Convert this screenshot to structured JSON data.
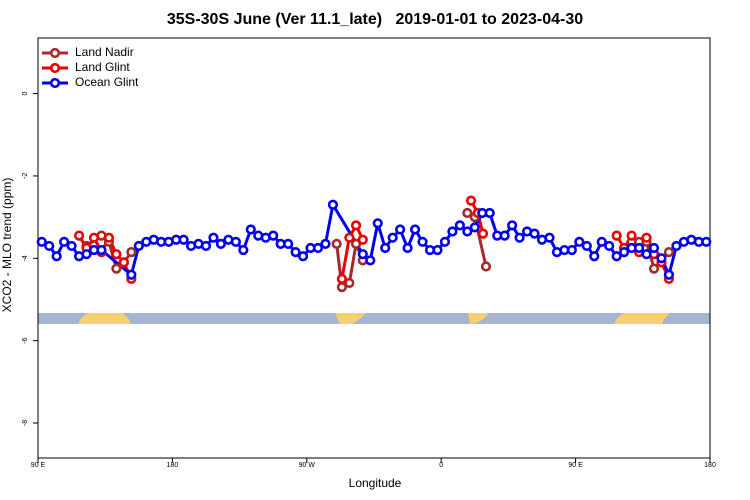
{
  "chart_data": {
    "type": "line",
    "title": "35S-30S June (Ver 11.1_late)   2019-01-01 to 2023-04-30",
    "xlabel": "Longitude",
    "ylabel": "XCO2 - MLO trend (ppm)",
    "xlim": [
      90,
      540
    ],
    "ylim": [
      -8.85,
      1.35
    ],
    "xticks": [
      {
        "value": 90,
        "label": "90 E"
      },
      180,
      {
        "value": 270,
        "label": "90 W"
      },
      {
        "value": 360,
        "label": "0"
      },
      {
        "value": 450,
        "label": "90 E"
      },
      {
        "value": 540,
        "label": "180"
      }
    ],
    "yticks": [
      0,
      -2,
      -4,
      -6,
      -8
    ],
    "legend": "upper left",
    "series": [
      {
        "name": "Land Nadir",
        "color": "#a52a2a",
        "x": [
          122.5,
          132.5,
          137.5,
          142.5,
          147.5,
          152.5,
          null,
          290,
          293.5,
          298.5,
          303,
          307.5,
          null,
          377.5,
          382.5,
          390,
          null,
          482.5,
          487.5,
          492.5,
          497.5,
          502.5,
          512.5
        ],
        "values": [
          -3.7,
          -3.45,
          -3.6,
          -4.25,
          -4.1,
          -3.85,
          null,
          -3.65,
          -4.7,
          -4.6,
          -3.65,
          -4.05,
          null,
          -2.9,
          -3.0,
          -4.2,
          null,
          -3.75,
          -3.6,
          -3.6,
          -3.6,
          -4.25,
          -3.85
        ]
      },
      {
        "name": "Land Glint",
        "color": "#ee0000",
        "x": [
          117.5,
          122.5,
          127.5,
          132.5,
          137.5,
          142.5,
          147.5,
          152.5,
          null,
          293.5,
          298.5,
          303,
          307.5,
          null,
          380,
          384.5,
          388,
          null,
          477.5,
          482.5,
          487.5,
          492.5,
          497.5,
          502.5,
          507.5,
          512.5
        ],
        "values": [
          -3.45,
          -3.75,
          -3.5,
          -3.85,
          -3.5,
          -3.9,
          -4.1,
          -4.5,
          null,
          -4.5,
          -3.5,
          -3.2,
          -3.55,
          null,
          -2.6,
          -2.9,
          -3.4,
          null,
          -3.45,
          -3.75,
          -3.45,
          -3.85,
          -3.5,
          -3.9,
          -4.1,
          -4.5
        ]
      },
      {
        "name": "Ocean Glint",
        "color": "#0000ee",
        "x": [
          92.5,
          97.5,
          102.5,
          107.5,
          112.5,
          117.5,
          122.5,
          127.5,
          132.5,
          152.5,
          157.5,
          162.5,
          167.5,
          172.5,
          177.5,
          182.5,
          187.5,
          192.5,
          197.5,
          202.5,
          207.5,
          212.5,
          217.5,
          222.5,
          227.5,
          232.5,
          237.5,
          242.5,
          247.5,
          252.5,
          257.5,
          262.5,
          267.5,
          272.5,
          277.5,
          282.5,
          287.5,
          307.5,
          312.5,
          317.5,
          322.5,
          327.5,
          332.5,
          337.5,
          342.5,
          347.5,
          352.5,
          357.5,
          362.5,
          367.5,
          372.5,
          377.5,
          382.5,
          387.5,
          392.5,
          397.5,
          402.5,
          407.5,
          412.5,
          417.5,
          422.5,
          427.5,
          432.5,
          437.5,
          442.5,
          447.5,
          452.5,
          457.5,
          462.5,
          467.5,
          472.5,
          477.5,
          482.5,
          487.5,
          492.5,
          497.5,
          502.5,
          507.5,
          512.5,
          517.5,
          522.5,
          527.5,
          532.5,
          537.5
        ],
        "values": [
          -3.6,
          -3.7,
          -3.95,
          -3.6,
          -3.7,
          -3.95,
          -3.9,
          -3.8,
          -3.8,
          -4.4,
          -3.7,
          -3.6,
          -3.55,
          -3.6,
          -3.6,
          -3.55,
          -3.55,
          -3.7,
          -3.65,
          -3.7,
          -3.5,
          -3.65,
          -3.55,
          -3.6,
          -3.8,
          -3.3,
          -3.45,
          -3.5,
          -3.45,
          -3.65,
          -3.65,
          -3.85,
          -3.95,
          -3.75,
          -3.75,
          -3.65,
          -2.7,
          -3.9,
          -4.05,
          -3.15,
          -3.75,
          -3.5,
          -3.3,
          -3.75,
          -3.3,
          -3.6,
          -3.8,
          -3.8,
          -3.6,
          -3.35,
          -3.2,
          -3.35,
          -3.25,
          -2.9,
          -2.9,
          -3.45,
          -3.45,
          -3.2,
          -3.5,
          -3.35,
          -3.4,
          -3.55,
          -3.5,
          -3.85,
          -3.8,
          -3.8,
          -3.6,
          -3.7,
          -3.95,
          -3.6,
          -3.7,
          -3.95,
          -3.85,
          -3.75,
          -3.75,
          -3.9,
          -3.75,
          -4.0,
          -4.4,
          -3.7,
          -3.6,
          -3.55,
          -3.6,
          -3.6
        ]
      }
    ]
  }
}
